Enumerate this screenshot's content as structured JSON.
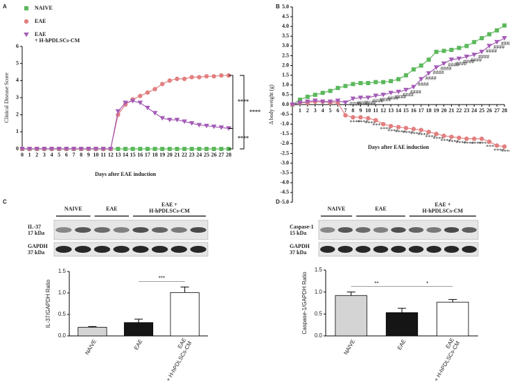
{
  "chart_data": [
    {
      "type": "line",
      "panel": "A",
      "xlabel": "Days after EAE induction",
      "ylabel": "Clinical Disease Score",
      "x": [
        0,
        1,
        2,
        3,
        4,
        5,
        6,
        7,
        8,
        9,
        10,
        11,
        12,
        13,
        14,
        15,
        16,
        17,
        18,
        19,
        20,
        21,
        22,
        23,
        24,
        25,
        26,
        27,
        28
      ],
      "xlim": [
        0,
        28
      ],
      "xticks": [
        0,
        1,
        2,
        3,
        4,
        5,
        6,
        7,
        8,
        9,
        10,
        11,
        12,
        13,
        14,
        15,
        16,
        17,
        18,
        19,
        20,
        21,
        22,
        23,
        24,
        25,
        26,
        27,
        28
      ],
      "ylim": [
        0,
        6
      ],
      "yticks": [
        0,
        1,
        2,
        3,
        4,
        5,
        6
      ],
      "legend": "top-left",
      "series": [
        {
          "name": "NAIVE",
          "color": "#5cb85c",
          "marker": "square",
          "values": [
            0,
            0,
            0,
            0,
            0,
            0,
            0,
            0,
            0,
            0,
            0,
            0,
            0,
            0,
            0,
            0,
            0,
            0,
            0,
            0,
            0,
            0,
            0,
            0,
            0,
            0,
            0,
            0,
            0
          ]
        },
        {
          "name": "EAE",
          "color": "#e27f80",
          "marker": "circle",
          "values": [
            0,
            0,
            0,
            0,
            0,
            0,
            0,
            0,
            0,
            0,
            0,
            0,
            0,
            2.0,
            2.6,
            2.9,
            3.1,
            3.3,
            3.5,
            3.8,
            4.0,
            4.1,
            4.1,
            4.2,
            4.2,
            4.25,
            4.25,
            4.3,
            4.3
          ]
        },
        {
          "name": "EAE\n+ H-hPDLSCs-CM",
          "color": "#a35bb5",
          "marker": "triangle",
          "values": [
            0,
            0,
            0,
            0,
            0,
            0,
            0,
            0,
            0,
            0,
            0,
            0,
            0,
            2.2,
            2.7,
            2.8,
            2.7,
            2.4,
            2.1,
            1.8,
            1.7,
            1.7,
            1.6,
            1.5,
            1.4,
            1.35,
            1.3,
            1.25,
            1.2
          ]
        }
      ],
      "significance": [
        "****",
        "****",
        "****"
      ]
    },
    {
      "type": "line",
      "panel": "B",
      "xlabel": "Days after EAE induction",
      "ylabel": "Δ body weight (g)",
      "x": [
        0,
        1,
        2,
        3,
        4,
        5,
        6,
        7,
        8,
        9,
        10,
        11,
        12,
        13,
        14,
        15,
        16,
        17,
        18,
        19,
        20,
        21,
        22,
        23,
        24,
        25,
        26,
        27,
        28
      ],
      "xlim": [
        0,
        28
      ],
      "xticks": [
        1,
        2,
        3,
        4,
        5,
        6,
        7,
        8,
        9,
        10,
        11,
        12,
        13,
        14,
        15,
        16,
        17,
        18,
        19,
        20,
        21,
        22,
        23,
        24,
        25,
        26,
        27,
        28
      ],
      "ylim": [
        -5,
        5
      ],
      "yticks": [
        {
          "value": 5,
          "label": "5.0"
        },
        {
          "value": 4.5,
          "label": "4.5"
        },
        {
          "value": 4,
          "label": "4.0"
        },
        {
          "value": 3.5,
          "label": "3.5"
        },
        {
          "value": 3,
          "label": "3.0"
        },
        {
          "value": 2.5,
          "label": "2.5"
        },
        {
          "value": 2,
          "label": "2.0"
        },
        {
          "value": 1.5,
          "label": "1.5"
        },
        {
          "value": 1,
          "label": "1.0"
        },
        {
          "value": 0.5,
          "label": "0.5"
        },
        {
          "value": 0,
          "label": "0.0"
        },
        {
          "value": -0.5,
          "label": "-0.5"
        },
        {
          "value": -1,
          "label": "-1.0"
        },
        {
          "value": -1.5,
          "label": "-1.5"
        },
        {
          "value": -2,
          "label": "-2.0"
        },
        {
          "value": -2.5,
          "label": "-2.5"
        },
        {
          "value": -3,
          "label": "-3.0"
        },
        {
          "value": -3.5,
          "label": "-3.5"
        },
        {
          "value": -4,
          "label": "-4.0"
        },
        {
          "value": -4.5,
          "label": "-4.5"
        },
        {
          "value": -5,
          "label": "-5.0"
        }
      ],
      "series": [
        {
          "name": "NAIVE",
          "color": "#5cb85c",
          "marker": "square",
          "values": [
            0,
            0.25,
            0.4,
            0.5,
            0.6,
            0.7,
            0.85,
            0.95,
            1.05,
            1.1,
            1.1,
            1.15,
            1.15,
            1.2,
            1.3,
            1.5,
            1.8,
            2.0,
            2.3,
            2.7,
            2.75,
            2.8,
            2.9,
            3.0,
            3.2,
            3.4,
            3.6,
            3.8,
            4.05
          ]
        },
        {
          "name": "EAE",
          "color": "#e27f80",
          "marker": "circle",
          "values": [
            0,
            0.1,
            0.1,
            0.15,
            0.15,
            0.1,
            0.1,
            -0.55,
            -0.65,
            -0.65,
            -0.7,
            -0.8,
            -1.0,
            -1.1,
            -1.15,
            -1.2,
            -1.25,
            -1.3,
            -1.4,
            -1.5,
            -1.6,
            -1.65,
            -1.7,
            -1.75,
            -1.75,
            -1.75,
            -1.9,
            -2.1,
            -2.15
          ],
          "value_labels": [
            null,
            null,
            null,
            null,
            null,
            null,
            null,
            null,
            "****",
            "****",
            "****",
            "****",
            "****",
            "****",
            "****",
            "****",
            "****",
            "****",
            "****",
            "****",
            "****",
            "****",
            "****",
            "****",
            "****",
            "****",
            "****",
            "****",
            "****"
          ]
        },
        {
          "name": "EAE\n+ H-hPDLSCs-CM",
          "color": "#a35bb5",
          "marker": "triangle",
          "values": [
            0,
            0.1,
            0.15,
            0.2,
            0.15,
            0.15,
            0.2,
            0.1,
            0.3,
            0.35,
            0.35,
            0.45,
            0.5,
            0.6,
            0.65,
            0.75,
            0.9,
            1.3,
            1.6,
            1.9,
            2.1,
            2.3,
            2.35,
            2.45,
            2.55,
            2.7,
            3.0,
            3.2,
            3.4
          ],
          "value_labels": [
            null,
            null,
            null,
            null,
            null,
            null,
            null,
            null,
            "####",
            "####",
            "####",
            "####",
            "####",
            "####",
            "####",
            "####",
            "####",
            "####",
            "####",
            "####",
            "####",
            "####",
            "####",
            "####",
            "####",
            "####",
            "####",
            "####",
            "####"
          ]
        }
      ]
    },
    {
      "type": "bar",
      "panel": "C",
      "ylabel": "IL-37/GAPDH Ratio",
      "categories": [
        "NAIVE",
        "EAE",
        "EAE\n+ H-hPDLSCs-CM"
      ],
      "values": [
        0.2,
        0.31,
        1.01
      ],
      "errors": [
        0.02,
        0.08,
        0.13
      ],
      "colors": [
        "#d4d4d4",
        "#151515",
        "#ffffff"
      ],
      "ylim": [
        0,
        1.5
      ],
      "yticks": [
        {
          "value": 0,
          "label": "0.0"
        },
        {
          "value": 0.5,
          "label": "0.5"
        },
        {
          "value": 1,
          "label": "1.0"
        },
        {
          "value": 1.5,
          "label": "1.5"
        }
      ],
      "significance": [
        "***"
      ],
      "blot": {
        "groups": [
          "NAIVE",
          "EAE",
          "EAE +\nH-hPDLSCs-CM"
        ],
        "rows": [
          "IL-37\n17 kDa",
          "GAPDH\n37 kDa"
        ]
      }
    },
    {
      "type": "bar",
      "panel": "D",
      "ylabel": "Caspase-1/GAPDH Ratio",
      "categories": [
        "NAIVE",
        "EAE",
        "EAE\n+ H-hPDLSCs-CM"
      ],
      "values": [
        0.92,
        0.53,
        0.77
      ],
      "errors": [
        0.08,
        0.1,
        0.06
      ],
      "colors": [
        "#d4d4d4",
        "#151515",
        "#ffffff"
      ],
      "ylim": [
        0,
        1.5
      ],
      "yticks": [
        {
          "value": 0,
          "label": "0.0"
        },
        {
          "value": 0.5,
          "label": "0.5"
        },
        {
          "value": 1,
          "label": "1.0"
        },
        {
          "value": 1.5,
          "label": "1.5"
        }
      ],
      "significance": [
        "**",
        "*"
      ],
      "blot": {
        "groups": [
          "NAIVE",
          "EAE",
          "EAE +\nH-hPDLSCs-CM"
        ],
        "rows": [
          "Caspase-1\n15 kDa",
          "GAPDH\n37 kDa"
        ]
      }
    }
  ]
}
